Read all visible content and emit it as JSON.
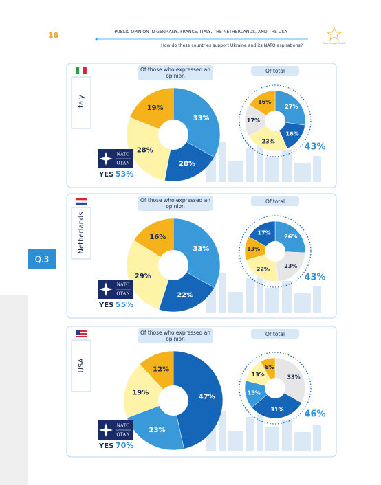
{
  "header": {
    "page_number": "18",
    "title": "PUBLIC OPINION IN GERMANY, FRANCE, ITALY, THE NETHERLANDS, AND THE USA",
    "subtitle": "How do these countries support Ukraine and its NATO aspirations?",
    "logo": "New Europe Center"
  },
  "question": "Q.3",
  "panels": [
    {
      "country": "Italy",
      "left_label": "Of those who expressed an opinion",
      "right_label": "Of total",
      "nato": "NATO",
      "otan": "OTAN",
      "yes": "YES",
      "yes_value": "53%",
      "total_value": "43%"
    },
    {
      "country": "Netherlands",
      "left_label": "Of those who expressed an opinion",
      "right_label": "Of total",
      "nato": "NATO",
      "otan": "OTAN",
      "yes": "YES",
      "yes_value": "55%",
      "total_value": "43%"
    },
    {
      "country": "USA",
      "left_label": "Of those who expressed an opinion",
      "right_label": "Of total",
      "nato": "NATO",
      "otan": "OTAN",
      "yes": "YES",
      "yes_value": "70%",
      "total_value": "46%"
    }
  ],
  "chart_data": [
    {
      "type": "pie",
      "values": [
        33,
        20,
        28,
        19
      ],
      "value_labels": [
        "33%",
        "20%",
        "28%",
        "19%"
      ],
      "colors": [
        "#3a9ad9",
        "#1565b8",
        "#fff3a8",
        "#f5b21b"
      ]
    },
    {
      "type": "pie",
      "values": [
        27,
        16,
        23,
        17,
        16
      ],
      "value_labels": [
        "27%",
        "16%",
        "23%",
        "17%",
        "16%"
      ],
      "colors": [
        "#3a9ad9",
        "#1565b8",
        "#fff3a8",
        "#e6e6e6",
        "#f5b21b"
      ]
    },
    {
      "type": "pie",
      "values": [
        33,
        22,
        29,
        16
      ],
      "value_labels": [
        "33%",
        "22%",
        "29%",
        "16%"
      ],
      "colors": [
        "#3a9ad9",
        "#1565b8",
        "#fff3a8",
        "#f5b21b"
      ]
    },
    {
      "type": "pie",
      "values": [
        26,
        23,
        22,
        13,
        17
      ],
      "value_labels": [
        "26%",
        "23%",
        "22%",
        "13%",
        "17%"
      ],
      "colors": [
        "#3a9ad9",
        "#e6e6e6",
        "#fff3a8",
        "#f5b21b",
        "#1565b8"
      ]
    },
    {
      "type": "pie",
      "values": [
        47,
        23,
        19,
        12
      ],
      "value_labels": [
        "47%",
        "23%",
        "19%",
        "12%"
      ],
      "colors": [
        "#1565b8",
        "#3a9ad9",
        "#fff3a8",
        "#f5b21b"
      ]
    },
    {
      "type": "pie",
      "values": [
        33,
        31,
        15,
        13,
        8
      ],
      "value_labels": [
        "33%",
        "31%",
        "15%",
        "13%",
        "8%"
      ],
      "colors": [
        "#e6e6e6",
        "#1565b8",
        "#3a9ad9",
        "#fff3a8",
        "#f5b21b"
      ]
    }
  ]
}
